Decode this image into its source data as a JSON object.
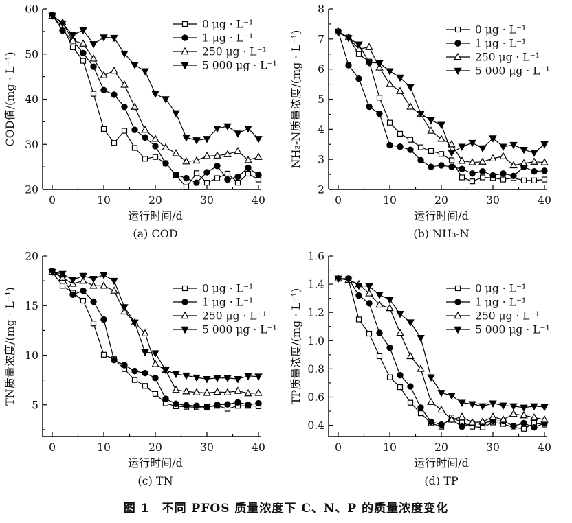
{
  "figure": {
    "caption": "图 1　不同 PFOS 质量浓度下 C、N、P 的质量浓度变化"
  },
  "chart_data": [
    {
      "type": "line",
      "panel_label": "(a) COD",
      "xlabel": "运行时间/d",
      "ylabel": "COD值/(mg · L⁻¹)",
      "x": [
        0,
        2,
        4,
        6,
        8,
        10,
        12,
        14,
        16,
        18,
        20,
        22,
        24,
        26,
        28,
        30,
        32,
        34,
        36,
        38,
        40
      ],
      "xticks": [
        0,
        10,
        20,
        30,
        40
      ],
      "x_minor_step": 5,
      "ylim": [
        20,
        60
      ],
      "yticks": [
        20,
        30,
        40,
        50,
        60
      ],
      "ytick_labels": [
        "20",
        "30",
        "40",
        "50",
        "60"
      ],
      "y_minor_step": 5,
      "legend_pos": {
        "x": 252,
        "y": 35
      },
      "series": [
        {
          "name": "0 μg · L⁻¹",
          "marker": "square-open",
          "values": [
            58.5,
            56.0,
            51.5,
            48.5,
            41.2,
            33.4,
            30.3,
            33.0,
            29.2,
            26.8,
            27.2,
            25.8,
            23.2,
            20.5,
            23.6,
            21.5,
            22.5,
            23.5,
            21.5,
            23.5,
            22.2
          ]
        },
        {
          "name": "1 μg · L⁻¹",
          "marker": "circle-filled",
          "values": [
            58.7,
            55.2,
            53.0,
            50.2,
            47.2,
            42.0,
            41.0,
            38.3,
            33.2,
            31.5,
            29.6,
            25.8,
            23.2,
            22.5,
            21.5,
            23.8,
            25.2,
            22.2,
            22.8,
            24.8,
            23.2
          ]
        },
        {
          "name": "250 μg · L⁻¹",
          "marker": "triangle-up-open",
          "values": [
            58.5,
            57.0,
            53.0,
            52.3,
            49.0,
            45.3,
            46.3,
            43.2,
            38.3,
            33.2,
            31.2,
            29.3,
            28.0,
            26.2,
            26.4,
            27.4,
            27.5,
            27.8,
            28.5,
            26.5,
            27.2
          ]
        },
        {
          "name": "5 000 μg · L⁻¹",
          "marker": "triangle-down-filled",
          "values": [
            58.5,
            56.8,
            54.2,
            55.3,
            52.2,
            53.7,
            53.6,
            50.1,
            47.6,
            46.2,
            41.2,
            40.0,
            36.9,
            31.5,
            30.9,
            31.2,
            33.5,
            34.0,
            32.4,
            33.5,
            31.2
          ]
        }
      ]
    },
    {
      "type": "line",
      "panel_label": "(b) NH₃-N",
      "xlabel": "运行时间/d",
      "ylabel": "NH₃-N质量浓度/(mg · L⁻¹)",
      "x": [
        0,
        2,
        4,
        6,
        8,
        10,
        12,
        14,
        16,
        18,
        20,
        22,
        24,
        26,
        28,
        30,
        32,
        34,
        36,
        38,
        40
      ],
      "xticks": [
        0,
        10,
        20,
        30,
        40
      ],
      "x_minor_step": 5,
      "ylim": [
        2,
        8
      ],
      "yticks": [
        2,
        3,
        4,
        5,
        6,
        7,
        8
      ],
      "ytick_labels": [
        "2",
        "3",
        "4",
        "5",
        "6",
        "7",
        "8"
      ],
      "y_minor_step": 0.5,
      "legend_pos": {
        "x": 233,
        "y": 43
      },
      "series": [
        {
          "name": "0 μg · L⁻¹",
          "marker": "square-open",
          "values": [
            7.25,
            7.05,
            6.5,
            6.25,
            5.05,
            4.22,
            3.85,
            3.65,
            3.4,
            3.28,
            3.18,
            2.97,
            2.4,
            2.27,
            2.4,
            2.38,
            2.33,
            2.38,
            2.3,
            2.3,
            2.33
          ]
        },
        {
          "name": "1 μg · L⁻¹",
          "marker": "circle-filled",
          "values": [
            7.25,
            6.13,
            5.68,
            4.75,
            4.52,
            3.47,
            3.42,
            3.32,
            2.97,
            2.75,
            2.8,
            2.75,
            2.68,
            2.53,
            2.6,
            2.47,
            2.53,
            2.45,
            2.75,
            2.6,
            2.62
          ]
        },
        {
          "name": "250 μg · L⁻¹",
          "marker": "triangle-up-open",
          "values": [
            7.25,
            7.05,
            6.67,
            6.73,
            6.05,
            5.5,
            5.27,
            4.75,
            4.5,
            3.95,
            3.68,
            3.5,
            2.95,
            2.9,
            2.92,
            3.03,
            3.1,
            2.8,
            2.87,
            2.92,
            2.9
          ]
        },
        {
          "name": "5 000 μg · L⁻¹",
          "marker": "triangle-down-filled",
          "values": [
            7.22,
            7.03,
            6.82,
            6.22,
            6.2,
            5.93,
            5.72,
            5.4,
            4.52,
            4.3,
            4.15,
            3.22,
            3.42,
            3.55,
            3.37,
            3.7,
            3.42,
            3.48,
            3.32,
            3.22,
            3.5
          ]
        }
      ]
    },
    {
      "type": "line",
      "panel_label": "(c) TN",
      "xlabel": "运行时间/d",
      "ylabel": "TN质量浓度/(mg · L⁻¹)",
      "x": [
        0,
        2,
        4,
        6,
        8,
        10,
        12,
        14,
        16,
        18,
        20,
        22,
        24,
        26,
        28,
        30,
        32,
        34,
        36,
        38,
        40
      ],
      "xticks": [
        0,
        10,
        20,
        30,
        40
      ],
      "x_minor_step": 5,
      "ylim": [
        1.8,
        20
      ],
      "yticks": [
        5,
        10,
        15,
        20
      ],
      "ytick_labels": [
        "5",
        "10",
        "15",
        "20"
      ],
      "y_minor_step": 2.5,
      "legend_pos": {
        "x": 252,
        "y": 60
      },
      "series": [
        {
          "name": "0 μg · L⁻¹",
          "marker": "square-open",
          "values": [
            18.4,
            17.0,
            16.3,
            15.5,
            13.2,
            10.05,
            9.6,
            8.6,
            7.5,
            6.9,
            6.1,
            5.15,
            4.85,
            4.8,
            4.75,
            4.8,
            4.9,
            4.6,
            4.9,
            4.9,
            4.85
          ]
        },
        {
          "name": "1 μg · L⁻¹",
          "marker": "circle-filled",
          "values": [
            18.5,
            17.9,
            16.1,
            16.5,
            15.4,
            13.6,
            9.5,
            9.0,
            8.4,
            8.2,
            7.7,
            5.6,
            5.1,
            4.95,
            4.9,
            4.75,
            5.0,
            5.05,
            5.25,
            5.0,
            5.15
          ]
        },
        {
          "name": "250 μg · L⁻¹",
          "marker": "triangle-up-open",
          "values": [
            18.4,
            17.8,
            17.2,
            17.5,
            17.0,
            17.0,
            16.5,
            14.4,
            13.3,
            12.2,
            9.1,
            8.5,
            6.5,
            6.35,
            6.25,
            6.2,
            6.3,
            6.25,
            6.4,
            6.15,
            6.2
          ]
        },
        {
          "name": "5 000 μg · L⁻¹",
          "marker": "triangle-down-filled",
          "values": [
            18.4,
            18.2,
            17.6,
            18.0,
            17.7,
            18.1,
            17.5,
            14.85,
            13.3,
            10.3,
            10.2,
            8.5,
            8.1,
            7.95,
            7.75,
            7.6,
            7.7,
            7.7,
            7.6,
            7.9,
            7.85
          ]
        }
      ]
    },
    {
      "type": "line",
      "panel_label": "(d) TP",
      "xlabel": "运行时间/d",
      "ylabel": "TP质量浓度/(mg · L⁻¹)",
      "x": [
        0,
        2,
        4,
        6,
        8,
        10,
        12,
        14,
        16,
        18,
        20,
        22,
        24,
        26,
        28,
        30,
        32,
        34,
        36,
        38,
        40
      ],
      "xticks": [
        0,
        10,
        20,
        30,
        40
      ],
      "x_minor_step": 5,
      "ylim": [
        0.32,
        1.6
      ],
      "yticks": [
        0.4,
        0.6,
        0.8,
        1.0,
        1.2,
        1.4,
        1.6
      ],
      "ytick_labels": [
        "0.4",
        "0.6",
        "0.8",
        "1.0",
        "1.2",
        "1.4",
        "1.6"
      ],
      "y_minor_step": 0.1,
      "legend_pos": {
        "x": 233,
        "y": 60
      },
      "series": [
        {
          "name": "0 μg · L⁻¹",
          "marker": "square-open",
          "values": [
            1.44,
            1.43,
            1.15,
            1.05,
            0.89,
            0.74,
            0.67,
            0.56,
            0.485,
            0.415,
            0.39,
            0.455,
            0.42,
            0.39,
            0.385,
            0.42,
            0.41,
            0.385,
            0.375,
            0.415,
            0.405
          ]
        },
        {
          "name": "1 μg · L⁻¹",
          "marker": "circle-filled",
          "values": [
            1.44,
            1.44,
            1.32,
            1.265,
            1.055,
            0.95,
            0.755,
            0.675,
            0.525,
            0.425,
            0.405,
            0.44,
            0.39,
            0.415,
            0.415,
            0.43,
            0.43,
            0.395,
            0.415,
            0.385,
            0.415
          ]
        },
        {
          "name": "250 μg · L⁻¹",
          "marker": "triangle-up-open",
          "values": [
            1.44,
            1.43,
            1.4,
            1.335,
            1.255,
            1.23,
            1.055,
            0.89,
            0.8,
            0.565,
            0.51,
            0.44,
            0.46,
            0.42,
            0.425,
            0.46,
            0.44,
            0.48,
            0.47,
            0.455,
            0.44
          ]
        },
        {
          "name": "5 000 μg · L⁻¹",
          "marker": "triangle-down-filled",
          "values": [
            1.44,
            1.435,
            1.39,
            1.385,
            1.325,
            1.29,
            1.19,
            1.13,
            1.02,
            0.74,
            0.63,
            0.61,
            0.56,
            0.55,
            0.535,
            0.555,
            0.54,
            0.535,
            0.525,
            0.535,
            0.53
          ]
        }
      ]
    }
  ]
}
